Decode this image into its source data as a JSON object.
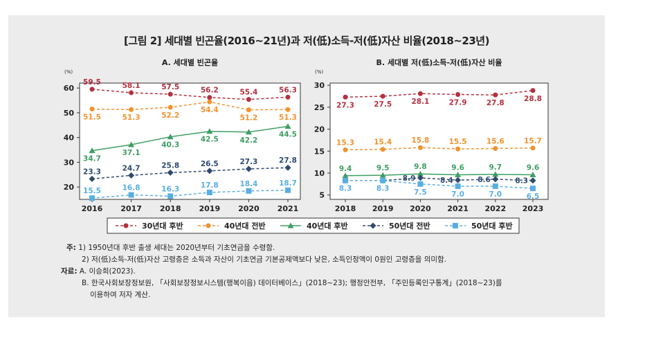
{
  "title": "[그림 2] 세대별 빈곤율(2016~21년)과 저(低)소득-저(低)자산 비율(2018~23년)",
  "chart_data": [
    {
      "type": "line",
      "title": "A. 세대별 빈곤율",
      "unit_label": "(%)",
      "categories": [
        "2016",
        "2017",
        "2018",
        "2019",
        "2020",
        "2021"
      ],
      "ylim": [
        15,
        62
      ],
      "yticks": [
        20,
        30,
        40,
        50,
        60
      ],
      "series": [
        {
          "name": "30년대 후반",
          "values": [
            59.5,
            58.1,
            57.5,
            56.2,
            55.4,
            56.3
          ],
          "labels": [
            "59.5",
            "58.1",
            "57.5",
            "56.2",
            "55.4",
            "56.3"
          ],
          "label_pos": "above"
        },
        {
          "name": "40년대 전반",
          "values": [
            51.5,
            51.3,
            52.2,
            54.4,
            51.2,
            51.3
          ],
          "labels": [
            "51.5",
            "51.3",
            "52.2",
            "54.4",
            "51.2",
            "51.3"
          ],
          "label_pos": "below"
        },
        {
          "name": "40년대 후반",
          "values": [
            34.7,
            37.1,
            40.3,
            42.5,
            42.2,
            44.5
          ],
          "labels": [
            "34.7",
            "37.1",
            "40.3",
            "42.5",
            "42.2",
            "44.5"
          ],
          "label_pos": "below"
        },
        {
          "name": "50년대 전반",
          "values": [
            23.3,
            24.7,
            25.8,
            26.5,
            27.3,
            27.8
          ],
          "labels": [
            "23.3",
            "24.7",
            "25.8",
            "26.5",
            "27.3",
            "27.8"
          ],
          "label_pos": "above"
        },
        {
          "name": "50년대 후반",
          "values": [
            15.5,
            16.8,
            16.3,
            17.8,
            18.4,
            18.7
          ],
          "labels": [
            "15.5",
            "16.8",
            "16.3",
            "17.8",
            "18.4",
            "18.7"
          ],
          "label_pos": "above"
        }
      ]
    },
    {
      "type": "line",
      "title": "B. 세대별 저(低)소득-저(低)자산 비율",
      "unit_label": "(%)",
      "categories": [
        "2018",
        "2019",
        "2020",
        "2021",
        "2022",
        "2023"
      ],
      "ylim": [
        4,
        30.5
      ],
      "yticks": [
        5,
        10,
        15,
        20,
        25,
        30
      ],
      "series": [
        {
          "name": "30년대 후반",
          "values": [
            27.3,
            27.5,
            28.1,
            27.9,
            27.8,
            28.8
          ],
          "labels": [
            "27.3",
            "27.5",
            "28.1",
            "27.9",
            "27.8",
            "28.8"
          ],
          "label_pos": "below"
        },
        {
          "name": "40년대 전반",
          "values": [
            15.3,
            15.4,
            15.8,
            15.5,
            15.6,
            15.7
          ],
          "labels": [
            "15.3",
            "15.4",
            "15.8",
            "15.5",
            "15.6",
            "15.7"
          ],
          "label_pos": "above"
        },
        {
          "name": "40년대 후반",
          "values": [
            9.4,
            9.5,
            9.8,
            9.6,
            9.7,
            9.6
          ],
          "labels": [
            "9.4",
            "9.5",
            "9.8",
            "9.6",
            "9.7",
            "9.6"
          ],
          "label_pos": "above"
        },
        {
          "name": "50년대 전반",
          "values": [
            8.3,
            8.3,
            8.9,
            8.4,
            8.6,
            8.3
          ],
          "labels": [
            "",
            "",
            "8.9",
            "8.4",
            "8.6",
            "8.3"
          ],
          "label_pos": "left"
        },
        {
          "name": "50년대 후반",
          "values": [
            8.3,
            8.3,
            7.5,
            7.0,
            7.0,
            6.5
          ],
          "labels": [
            "8.3",
            "8.3",
            "7.5",
            "7.0",
            "7.0",
            "6.5"
          ],
          "label_pos": "below"
        }
      ]
    }
  ],
  "legend": [
    {
      "name": "30년대 후반",
      "color": "#b5303f",
      "marker": "circle",
      "dash": "4,3"
    },
    {
      "name": "40년대 전반",
      "color": "#f0922e",
      "marker": "circle",
      "dash": "4,3"
    },
    {
      "name": "40년대 후반",
      "color": "#3f9e63",
      "marker": "triangle",
      "dash": ""
    },
    {
      "name": "50년대 전반",
      "color": "#2f4a6e",
      "marker": "diamond",
      "dash": "4,3"
    },
    {
      "name": "50년대 후반",
      "color": "#5aaee3",
      "marker": "square",
      "dash": "4,3"
    }
  ],
  "notes": {
    "note_label": "주:",
    "note1": "1) 1950년대 후반 출생 세대는 2020년부터 기초연금을 수령함.",
    "note2": "2) 저(低)소득-저(低)자산 고령층은 소득과 자산이 기초연금 기본공제액보다 낮은, 소득인정액이 0원인 고령층을 의미함.",
    "source_label": "자료:",
    "source1": "A. 이승희(2023).",
    "source2": "B. 한국사회보장정보원, 「사회보장정보시스템(행복이음) 데이터베이스」(2018~23); 행정안전부, 「주민등록인구통계」(2018~23)를",
    "source3": "이용하여 저자 계산."
  }
}
